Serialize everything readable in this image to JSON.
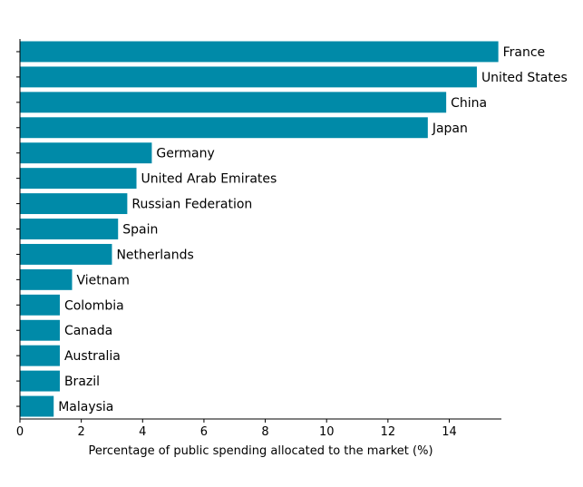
{
  "chart_data": {
    "type": "bar",
    "orientation": "horizontal",
    "title": "",
    "xlabel": "Percentage of public spending allocated to the market (%)",
    "ylabel": "",
    "xlim": [
      0,
      15.7
    ],
    "xticks": [
      0,
      2,
      4,
      6,
      8,
      10,
      12,
      14
    ],
    "grid": false,
    "bar_color": "#008aa8",
    "categories": [
      "France",
      "United States",
      "China",
      "Japan",
      "Germany",
      "United Arab Emirates",
      "Russian Federation",
      "Spain",
      "Netherlands",
      "Vietnam",
      "Colombia",
      "Canada",
      "Australia",
      "Brazil",
      "Malaysia"
    ],
    "values": [
      15.6,
      14.9,
      13.9,
      13.3,
      4.3,
      3.8,
      3.5,
      3.2,
      3.0,
      1.7,
      1.3,
      1.3,
      1.3,
      1.3,
      1.1
    ]
  }
}
